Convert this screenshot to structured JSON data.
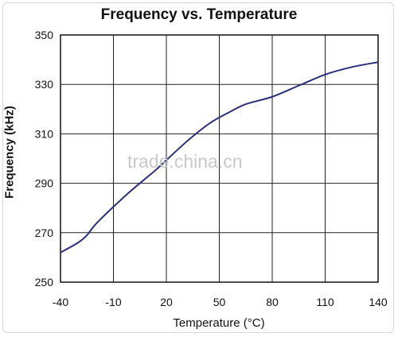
{
  "chart_data": {
    "type": "line",
    "title": "Frequency vs. Temperature",
    "xlabel": "Temperature (°C)",
    "ylabel": "Frequency (kHz)",
    "x_ticks": [
      -40,
      -10,
      20,
      50,
      80,
      110,
      140
    ],
    "y_ticks": [
      250,
      270,
      290,
      310,
      330,
      350
    ],
    "xlim": [
      -40,
      140
    ],
    "ylim": [
      250,
      350
    ],
    "grid": true,
    "series": [
      {
        "color": "#2a2f7a",
        "x": [
          -40,
          -30,
          -25,
          -20,
          -10,
          0,
          10,
          15,
          27,
          35,
          45,
          55,
          65,
          80,
          95,
          110,
          125,
          140
        ],
        "y": [
          262,
          266,
          269,
          273.5,
          280.5,
          287,
          293,
          296,
          304,
          309,
          314.5,
          318.5,
          322,
          325,
          329.5,
          334,
          337,
          339
        ]
      }
    ]
  },
  "watermark": "trade.china.cn"
}
